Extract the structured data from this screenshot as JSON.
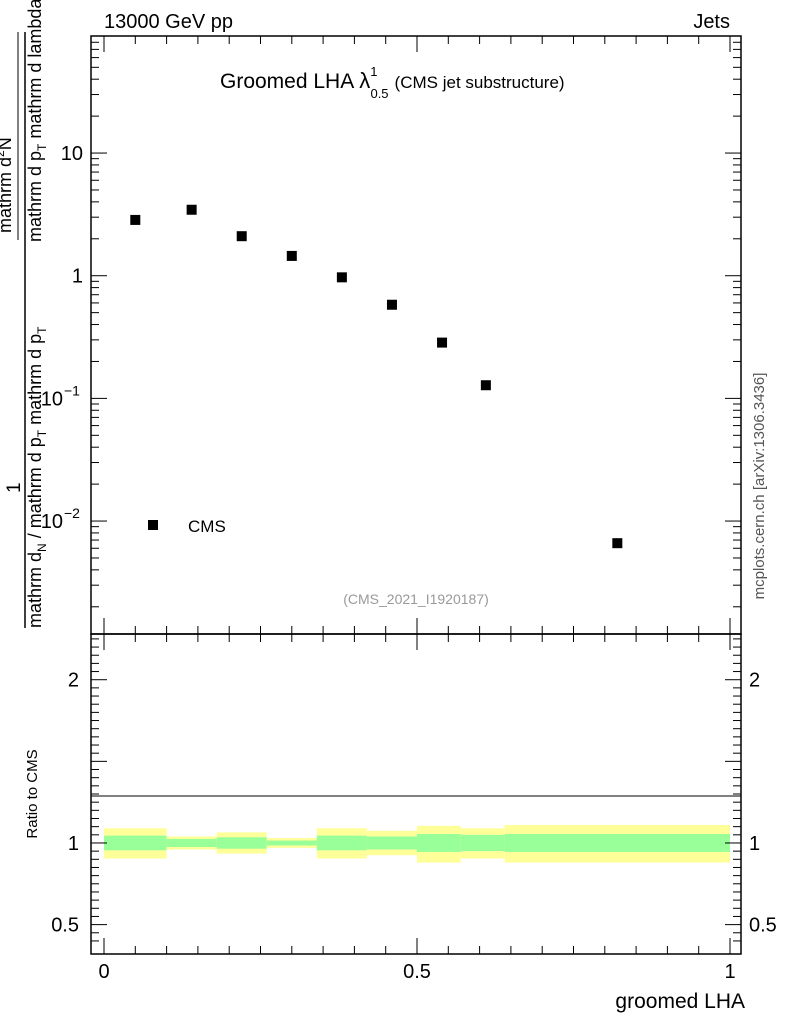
{
  "header": {
    "energy_label": "13000 GeV pp",
    "process_label": "Jets"
  },
  "chart_data": {
    "type": "scatter",
    "title": {
      "main": "Groomed LHA",
      "symbol": "λ",
      "superscript": "1",
      "subscript": "0.5",
      "suffix": "(CMS jet substructure)"
    },
    "analysis_id": "(CMS_2021_I1920187)",
    "side_label": "mcplots.cern.ch [arXiv:1306.3436]",
    "ylabel": {
      "one": "1",
      "denominator": "mathrm d",
      "denominator_sub1": "N",
      "denominator_mid": " / mathrm d p",
      "denominator_sub2": "T",
      "denominator_tail": " mathrm d p",
      "denominator_sub3": "T",
      "numerator_top": "mathrm d",
      "numerator_top_sup": "2",
      "numerator_top_tail": "N",
      "numerator_bottom": "mathrm d p",
      "numerator_bottom_sub": "T",
      "numerator_bottom_tail": " mathrm d lambda"
    },
    "xlabel": "groomed LHA",
    "xlim": [
      0,
      1
    ],
    "ylim": [
      0.0012,
      90
    ],
    "yscale": "log",
    "y_ticks": [
      {
        "value": 10,
        "label": "10",
        "kind": "plain"
      },
      {
        "value": 1,
        "label": "1",
        "kind": "plain"
      },
      {
        "value": 0.1,
        "label": "10",
        "exp": "−1",
        "kind": "pow"
      },
      {
        "value": 0.01,
        "label": "10",
        "exp": "−2",
        "kind": "pow"
      }
    ],
    "x_ticks": [
      {
        "value": 0,
        "label": "0"
      },
      {
        "value": 0.5,
        "label": "0.5"
      },
      {
        "value": 1,
        "label": "1"
      }
    ],
    "legend": {
      "label": "CMS",
      "position": "bottom-left"
    },
    "series": [
      {
        "name": "CMS",
        "x": [
          0.05,
          0.14,
          0.22,
          0.3,
          0.38,
          0.46,
          0.54,
          0.61,
          0.82
        ],
        "y": [
          2.85,
          3.45,
          2.1,
          1.45,
          0.97,
          0.58,
          0.285,
          0.128,
          0.0066
        ]
      }
    ],
    "ratio": {
      "ylabel": "Ratio to CMS",
      "ylim": [
        0.32,
        2.28
      ],
      "y_ticks": [
        {
          "value": 2,
          "label": "2"
        },
        {
          "value": 1,
          "label": "1"
        },
        {
          "value": 0.5,
          "label": "0.5"
        }
      ],
      "bins": [
        {
          "lo": 0.0,
          "hi": 0.1,
          "in_lo": 0.955,
          "in_hi": 1.045,
          "out_lo": 0.905,
          "out_hi": 1.09
        },
        {
          "lo": 0.1,
          "hi": 0.18,
          "in_lo": 0.975,
          "in_hi": 1.025,
          "out_lo": 0.96,
          "out_hi": 1.04
        },
        {
          "lo": 0.18,
          "hi": 0.26,
          "in_lo": 0.965,
          "in_hi": 1.035,
          "out_lo": 0.935,
          "out_hi": 1.065
        },
        {
          "lo": 0.26,
          "hi": 0.34,
          "in_lo": 0.985,
          "in_hi": 1.015,
          "out_lo": 0.97,
          "out_hi": 1.03
        },
        {
          "lo": 0.34,
          "hi": 0.42,
          "in_lo": 0.955,
          "in_hi": 1.045,
          "out_lo": 0.905,
          "out_hi": 1.09
        },
        {
          "lo": 0.42,
          "hi": 0.5,
          "in_lo": 0.96,
          "in_hi": 1.04,
          "out_lo": 0.925,
          "out_hi": 1.075
        },
        {
          "lo": 0.5,
          "hi": 0.57,
          "in_lo": 0.945,
          "in_hi": 1.055,
          "out_lo": 0.88,
          "out_hi": 1.105
        },
        {
          "lo": 0.57,
          "hi": 0.64,
          "in_lo": 0.95,
          "in_hi": 1.05,
          "out_lo": 0.905,
          "out_hi": 1.09
        },
        {
          "lo": 0.64,
          "hi": 1.0,
          "in_lo": 0.945,
          "in_hi": 1.055,
          "out_lo": 0.88,
          "out_hi": 1.11
        }
      ]
    },
    "colors": {
      "inner_band": "#99ff99",
      "outer_band": "#ffff99",
      "marker": "#000000",
      "reference_line": "#000000",
      "note_text": "#999999"
    }
  }
}
